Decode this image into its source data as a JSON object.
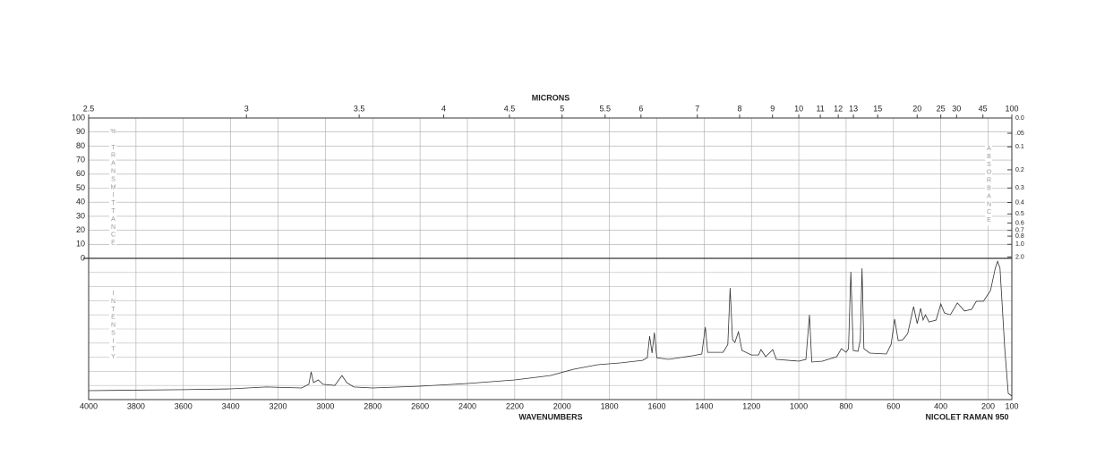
{
  "chart_data": {
    "type": "line",
    "top_axis_label": "MICRONS",
    "x_label": "WAVENUMBERS",
    "instrument": "NICOLET RAMAN 950",
    "left_axis_label": "% TRANSMITTANCE",
    "right_axis_label": "ABSORBANCE",
    "lower_axis_label": "INTENSITY",
    "xlim": [
      4000,
      100
    ],
    "xticks": [
      4000,
      3800,
      3600,
      3400,
      3200,
      3000,
      2800,
      2600,
      2400,
      2200,
      2000,
      1800,
      1600,
      1400,
      1200,
      1000,
      800,
      600,
      400,
      200,
      100
    ],
    "micron_ticks": [
      2.5,
      3,
      3.5,
      4,
      4.5,
      5,
      5.5,
      6,
      7,
      8,
      9,
      10,
      11,
      12,
      13,
      15,
      20,
      25,
      30,
      45,
      100
    ],
    "ylim": [
      0,
      100
    ],
    "yticks": [
      0,
      10,
      20,
      30,
      40,
      50,
      60,
      70,
      80,
      90,
      100
    ],
    "absorbance_ticks": [
      {
        "value": 0,
        "label": "0.0"
      },
      {
        "value": 0.05,
        "label": ".05"
      },
      0.1,
      0.2,
      0.3,
      0.4,
      0.5,
      0.6,
      0.7,
      0.8,
      {
        "value": 1,
        "label": "1.0"
      },
      {
        "value": 2,
        "label": "2.0"
      }
    ],
    "intensity_lim": [
      0,
      100
    ],
    "grid": true,
    "color": "#333333",
    "x": [
      4000,
      3600,
      3400,
      3250,
      3100,
      3070,
      3060,
      3050,
      3030,
      3010,
      2960,
      2930,
      2910,
      2880,
      2800,
      2600,
      2400,
      2200,
      2050,
      1950,
      1850,
      1750,
      1660,
      1640,
      1630,
      1620,
      1610,
      1600,
      1550,
      1450,
      1410,
      1395,
      1385,
      1320,
      1300,
      1290,
      1280,
      1270,
      1255,
      1240,
      1200,
      1170,
      1160,
      1140,
      1110,
      1095,
      1000,
      970,
      955,
      945,
      900,
      840,
      820,
      800,
      790,
      780,
      770,
      750,
      740,
      733,
      725,
      700,
      630,
      610,
      595,
      580,
      560,
      540,
      515,
      500,
      485,
      475,
      465,
      450,
      420,
      400,
      385,
      360,
      330,
      300,
      270,
      250,
      220,
      190,
      170,
      160,
      150,
      130,
      115,
      100
    ],
    "values": [
      6.3,
      7,
      7.6,
      8.9,
      8.2,
      10.8,
      19.6,
      12,
      13.9,
      10.8,
      10,
      17,
      12,
      8.9,
      8.2,
      9.5,
      11.4,
      13.9,
      17,
      21.5,
      24.7,
      26,
      27.8,
      29.7,
      44.9,
      32.9,
      47.5,
      29.7,
      28.5,
      31,
      32.3,
      51.3,
      33.5,
      33.5,
      39,
      79,
      42.4,
      40.5,
      48,
      34.8,
      31.6,
      31.6,
      35.4,
      30.4,
      35.4,
      28.5,
      27.2,
      28.5,
      60,
      26.6,
      27.2,
      30.4,
      36,
      33.5,
      36,
      90.5,
      34.8,
      34.2,
      42.4,
      93,
      36,
      32.9,
      32.3,
      39.2,
      57,
      41.8,
      42.4,
      46.8,
      65.8,
      53.8,
      64.6,
      56.3,
      60,
      55,
      56.3,
      67.7,
      61.4,
      60,
      68.4,
      62.7,
      63.9,
      69.6,
      69.6,
      77.2,
      93,
      98,
      93,
      36,
      4.4,
      2.5
    ]
  }
}
